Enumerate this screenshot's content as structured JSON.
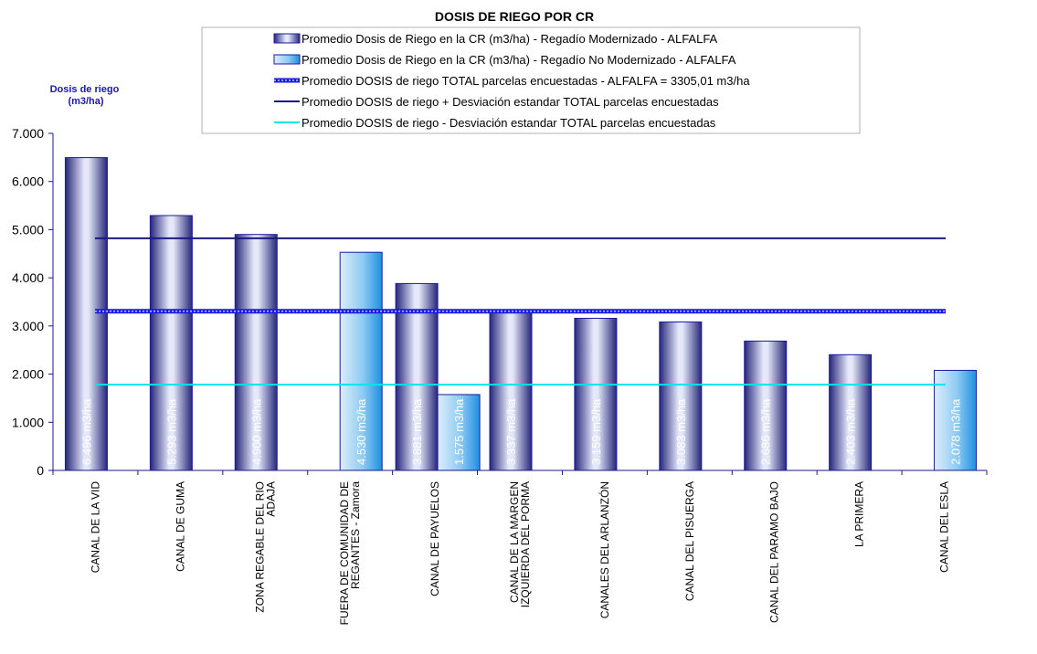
{
  "chart_data": {
    "type": "bar",
    "title": "DOSIS DE RIEGO POR CR",
    "ylabel": "Dosis de riego\n(m3/ha)",
    "ylim": [
      0,
      7000
    ],
    "yticks": [
      "0",
      "1.000",
      "2.000",
      "3.000",
      "4.000",
      "5.000",
      "6.000",
      "7.000"
    ],
    "ytick_values": [
      0,
      1000,
      2000,
      3000,
      4000,
      5000,
      6000,
      7000
    ],
    "grid": false,
    "legend_position": "top",
    "categories": [
      "CANAL DE LA VID",
      "CANAL DE GUMA",
      "ZONA REGABLE DEL RIO\nADAJA",
      "FUERA DE COMUNIDAD DE\nREGANTES - Zamora",
      "CANAL DE PAYUELOS",
      "CANAL DE LA MARGEN\nIZQUIERDA DEL PORMA",
      "CANALES DEL ARLANZÓN",
      "CANAL DEL PISUERGA",
      "CANAL DEL PARAMO BAJO",
      "LA PRIMERA",
      "CANAL DEL ESLA"
    ],
    "series": [
      {
        "name": "Promedio Dosis de Riego en la CR (m3/ha) - Regadío Modernizado - ALFALFA",
        "color": "#2c2c8c",
        "values": [
          6496,
          5293,
          4900,
          null,
          3881,
          3337,
          3159,
          3083,
          2686,
          2403,
          null
        ],
        "labels": [
          "6.496 m3/ha",
          "5.293 m3/ha",
          "4.900 m3/ha",
          null,
          "3.881 m3/ha",
          "3.337 m3/ha",
          "3.159 m3/ha",
          "3.083 m3/ha",
          "2.686 m3/ha",
          "2.403 m3/ha",
          null
        ]
      },
      {
        "name": "Promedio Dosis de Riego en la CR (m3/ha) - Regadío No Modernizado - ALFALFA",
        "color": "#1e90e0",
        "values": [
          null,
          null,
          null,
          4530,
          1575,
          null,
          null,
          null,
          null,
          null,
          2078
        ],
        "labels": [
          null,
          null,
          null,
          "4.530 m3/ha",
          "1.575 m3/ha",
          null,
          null,
          null,
          null,
          null,
          "2.078 m3/ha"
        ]
      }
    ],
    "reference_lines": [
      {
        "name": "Promedio DOSIS de riego TOTAL parcelas encuestadas - ALFALFA = 3305,01 m3/ha",
        "value": 3305.01,
        "color": "#3a3aff",
        "style": "thick-dotted"
      },
      {
        "name": "Promedio DOSIS de riego + Desviación estandar TOTAL parcelas encuestadas",
        "value": 4820,
        "color": "#1a1a80",
        "style": "solid"
      },
      {
        "name": "Promedio DOSIS de riego - Desviación estandar TOTAL parcelas encuestadas",
        "value": 1780,
        "color": "#00e5ee",
        "style": "solid"
      }
    ]
  }
}
